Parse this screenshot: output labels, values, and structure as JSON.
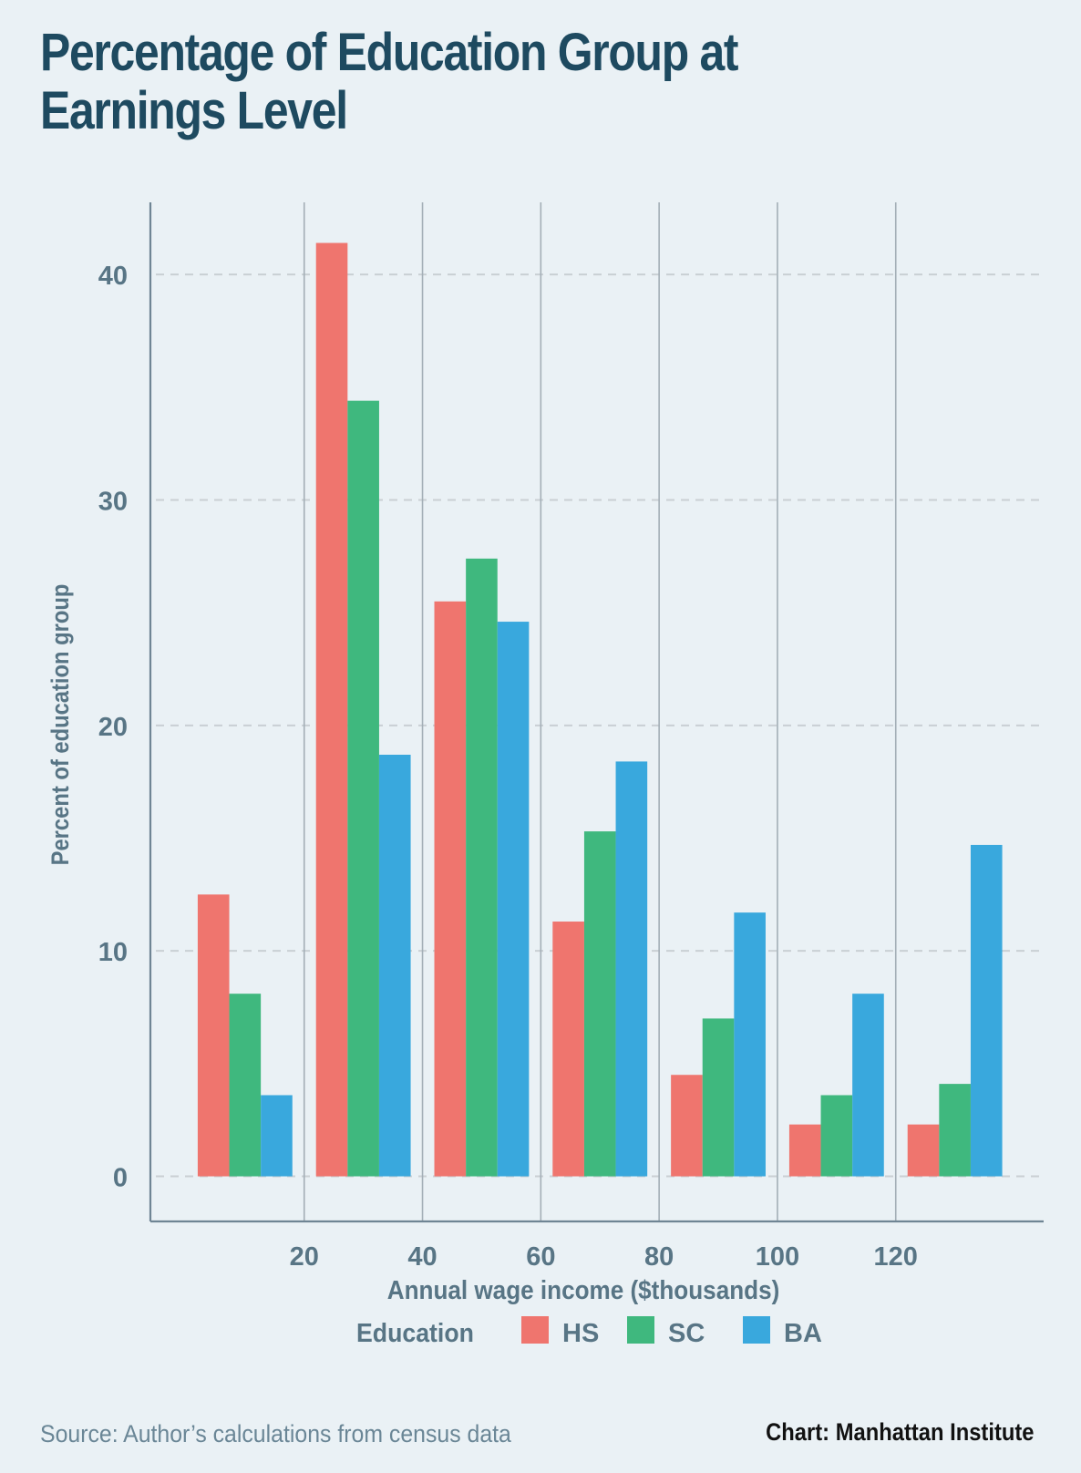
{
  "footer": {
    "source": "Source: Author’s calculations from census data",
    "credit": "Chart: Manhattan Institute"
  },
  "colors": {
    "HS": "#ef756e",
    "SC": "#3fb87e",
    "BA": "#39a8dd",
    "title": "#1e4a60",
    "axis_text": "#587585",
    "gridline": "#c9cfd4",
    "vline": "#a3aeb6",
    "axis": "#6f8594"
  },
  "chart_data": {
    "type": "bar",
    "title": "Percentage of Education Group at Earnings Level",
    "xlabel": "Annual wage income ($thousands)",
    "ylabel": "Percent of education group",
    "x_ticks": [
      20,
      40,
      60,
      80,
      100,
      120
    ],
    "x_range": [
      -6,
      145
    ],
    "y_ticks": [
      0,
      10,
      20,
      30,
      40
    ],
    "ylim": [
      -2,
      43.2
    ],
    "grid": "horizontal dashed at y ticks; vertical solid at x ticks",
    "bin_centers": [
      10,
      30,
      50,
      70,
      90,
      110,
      130
    ],
    "legend": {
      "title": "Education",
      "position": "bottom",
      "entries": [
        "HS",
        "SC",
        "BA"
      ]
    },
    "series": [
      {
        "name": "HS",
        "values": [
          12.5,
          41.4,
          25.5,
          11.3,
          4.5,
          2.3,
          2.3
        ]
      },
      {
        "name": "SC",
        "values": [
          8.1,
          34.4,
          27.4,
          15.3,
          7.0,
          3.6,
          4.1
        ]
      },
      {
        "name": "BA",
        "values": [
          3.6,
          18.7,
          24.6,
          18.4,
          11.7,
          8.1,
          14.7
        ]
      }
    ]
  }
}
